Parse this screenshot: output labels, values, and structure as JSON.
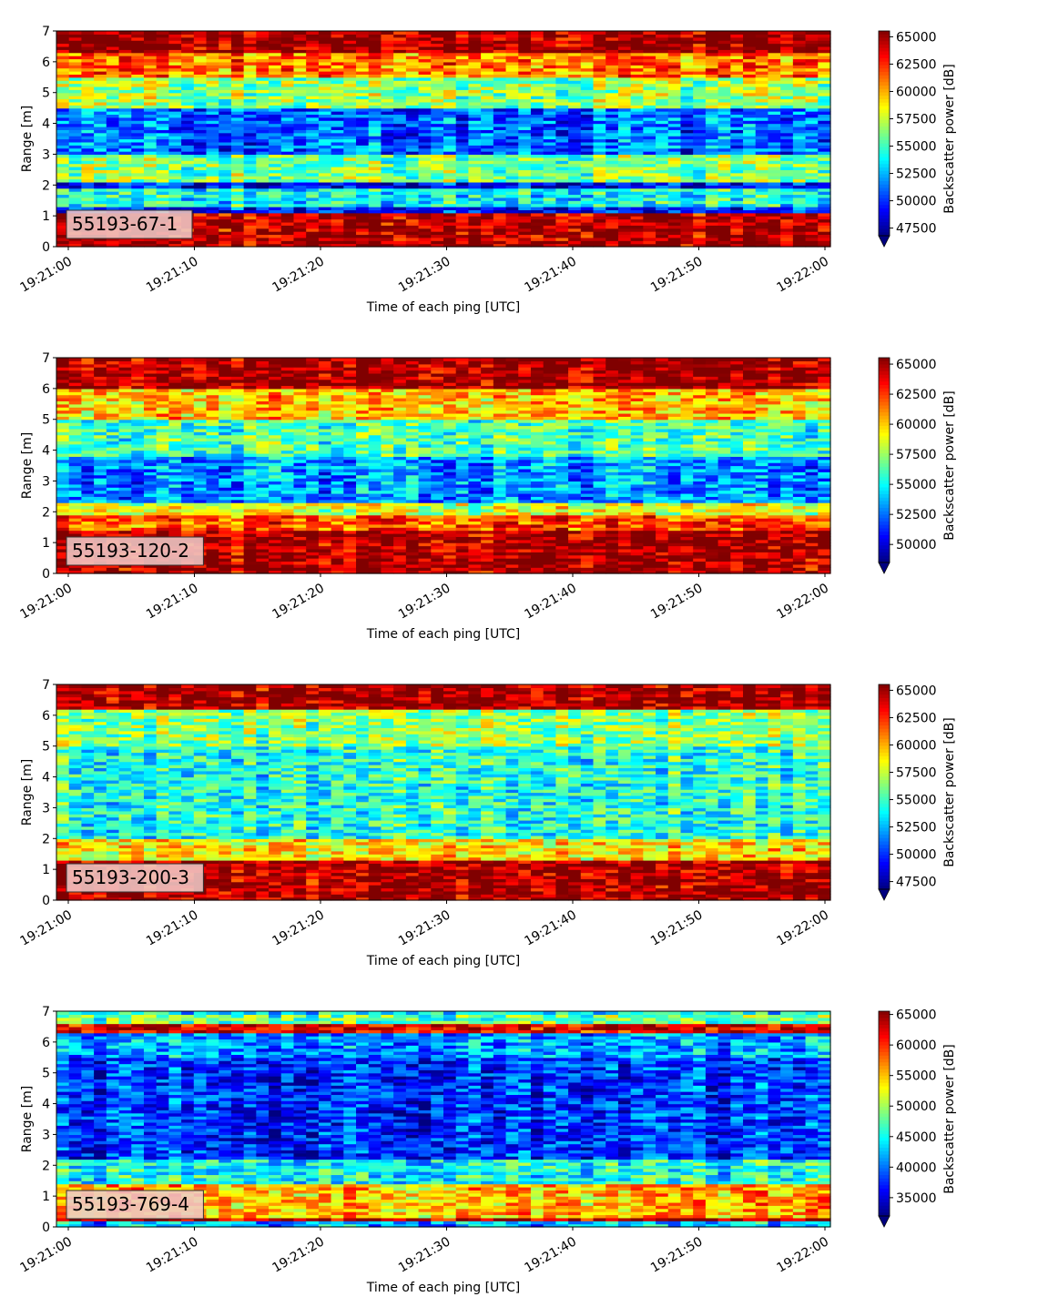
{
  "chart_data": [
    {
      "type": "heatmap",
      "tag": "55193-67-1",
      "xlabel": "Time of each ping [UTC]",
      "ylabel": "Range [m]",
      "x_ticks": [
        "19:21:00",
        "19:21:10",
        "19:21:20",
        "19:21:30",
        "19:21:40",
        "19:21:50",
        "19:22:00"
      ],
      "ylim": [
        0,
        7
      ],
      "y_ticks": [
        0,
        1,
        2,
        3,
        4,
        5,
        6,
        7
      ],
      "colorbar": {
        "label": "Backscatter power [dB]",
        "colormap": "jet",
        "range": [
          46800,
          65535
        ],
        "ticks": [
          47500,
          50000,
          52500,
          55000,
          57500,
          60000,
          62500,
          65000
        ],
        "extend": "min"
      },
      "range_profile": [
        {
          "range": [
            0.0,
            0.2
          ],
          "value": 65000
        },
        {
          "range": [
            0.2,
            1.1
          ],
          "value": 64500
        },
        {
          "range": [
            1.1,
            1.3
          ],
          "value": 49500
        },
        {
          "range": [
            1.3,
            1.9
          ],
          "value": 54000
        },
        {
          "range": [
            1.9,
            2.1
          ],
          "value": 49000
        },
        {
          "range": [
            2.1,
            3.0
          ],
          "value": 56000
        },
        {
          "range": [
            3.0,
            4.5
          ],
          "value": 51000
        },
        {
          "range": [
            4.5,
            5.5
          ],
          "value": 56500
        },
        {
          "range": [
            5.5,
            6.3
          ],
          "value": 61000
        },
        {
          "range": [
            6.3,
            7.0
          ],
          "value": 65000
        }
      ]
    },
    {
      "type": "heatmap",
      "tag": "55193-120-2",
      "xlabel": "Time of each ping [UTC]",
      "ylabel": "Range [m]",
      "x_ticks": [
        "19:21:00",
        "19:21:10",
        "19:21:20",
        "19:21:30",
        "19:21:40",
        "19:21:50",
        "19:22:00"
      ],
      "ylim": [
        0,
        7
      ],
      "y_ticks": [
        0,
        1,
        2,
        3,
        4,
        5,
        6,
        7
      ],
      "colorbar": {
        "label": "Backscatter power [dB]",
        "colormap": "jet",
        "range": [
          48500,
          65535
        ],
        "ticks": [
          50000,
          52500,
          55000,
          57500,
          60000,
          62500,
          65000
        ],
        "extend": "min"
      },
      "range_profile": [
        {
          "range": [
            0.0,
            1.4
          ],
          "value": 64800
        },
        {
          "range": [
            1.4,
            1.9
          ],
          "value": 62000
        },
        {
          "range": [
            1.9,
            2.3
          ],
          "value": 58500
        },
        {
          "range": [
            2.3,
            3.8
          ],
          "value": 53000
        },
        {
          "range": [
            3.8,
            5.0
          ],
          "value": 56000
        },
        {
          "range": [
            5.0,
            6.0
          ],
          "value": 60000
        },
        {
          "range": [
            6.0,
            7.0
          ],
          "value": 65000
        }
      ]
    },
    {
      "type": "heatmap",
      "tag": "55193-200-3",
      "xlabel": "Time of each ping [UTC]",
      "ylabel": "Range [m]",
      "x_ticks": [
        "19:21:00",
        "19:21:10",
        "19:21:20",
        "19:21:30",
        "19:21:40",
        "19:21:50",
        "19:22:00"
      ],
      "ylim": [
        0,
        7
      ],
      "y_ticks": [
        0,
        1,
        2,
        3,
        4,
        5,
        6,
        7
      ],
      "colorbar": {
        "label": "Backscatter power [dB]",
        "colormap": "jet",
        "range": [
          46800,
          65535
        ],
        "ticks": [
          47500,
          50000,
          52500,
          55000,
          57500,
          60000,
          62500,
          65000
        ],
        "extend": "min"
      },
      "range_profile": [
        {
          "range": [
            0.0,
            1.3
          ],
          "value": 64800
        },
        {
          "range": [
            1.3,
            2.0
          ],
          "value": 59000
        },
        {
          "range": [
            2.0,
            5.0
          ],
          "value": 54500
        },
        {
          "range": [
            5.0,
            6.2
          ],
          "value": 56500
        },
        {
          "range": [
            6.2,
            7.0
          ],
          "value": 65000
        }
      ]
    },
    {
      "type": "heatmap",
      "tag": "55193-769-4",
      "xlabel": "Time of each ping [UTC]",
      "ylabel": "Range [m]",
      "x_ticks": [
        "19:21:00",
        "19:21:10",
        "19:21:20",
        "19:21:30",
        "19:21:40",
        "19:21:50",
        "19:22:00"
      ],
      "ylim": [
        0,
        7
      ],
      "y_ticks": [
        0,
        1,
        2,
        3,
        4,
        5,
        6,
        7
      ],
      "colorbar": {
        "label": "Backscatter power [dB]",
        "colormap": "jet",
        "range": [
          32000,
          65535
        ],
        "ticks": [
          35000,
          40000,
          45000,
          50000,
          55000,
          60000,
          65000
        ],
        "extend": "min"
      },
      "range_profile": [
        {
          "range": [
            0.0,
            0.2
          ],
          "value": 42000
        },
        {
          "range": [
            0.2,
            0.35
          ],
          "value": 64000
        },
        {
          "range": [
            0.35,
            1.4
          ],
          "value": 55000
        },
        {
          "range": [
            1.4,
            2.2
          ],
          "value": 45000
        },
        {
          "range": [
            2.2,
            5.5
          ],
          "value": 37500
        },
        {
          "range": [
            5.5,
            6.3
          ],
          "value": 41000
        },
        {
          "range": [
            6.3,
            6.6
          ],
          "value": 62000
        },
        {
          "range": [
            6.6,
            6.85
          ],
          "value": 48000
        },
        {
          "range": [
            6.85,
            7.0
          ],
          "value": 44000
        }
      ]
    }
  ]
}
